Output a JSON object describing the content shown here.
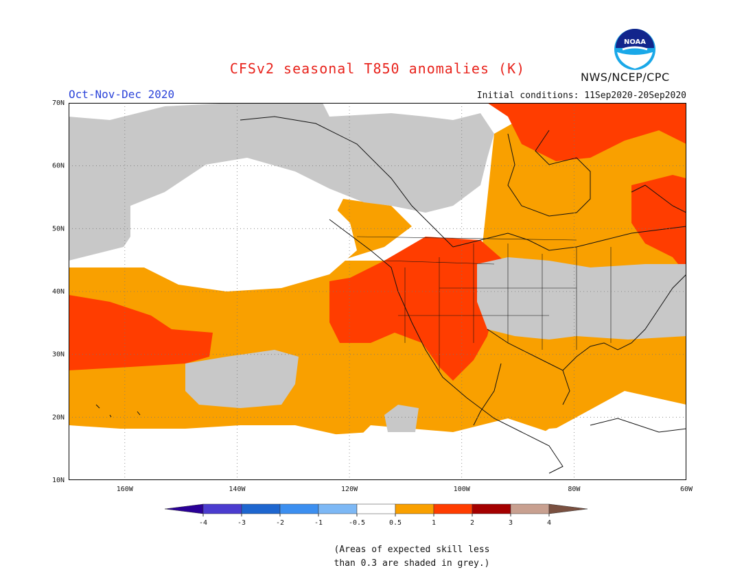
{
  "title": "CFSv2 seasonal T850 anomalies (K)",
  "period": "Oct-Nov-Dec 2020",
  "initial_conditions": "Initial conditions: 11Sep2020-20Sep2020",
  "agency": "NWS/NCEP/CPC",
  "logo_text": "NOAA",
  "map": {
    "lat_ticks": [
      "70N",
      "60N",
      "50N",
      "40N",
      "30N",
      "20N",
      "10N"
    ],
    "lon_ticks": [
      "160W",
      "140W",
      "120W",
      "100W",
      "80W",
      "60W"
    ],
    "lat_range": [
      10,
      70
    ],
    "lon_range": [
      -170,
      -60
    ],
    "colors": {
      "below": "#5fa2f0",
      "neutral": "#ffffff",
      "weak_warm": "#f9a000",
      "warm": "#ff3d00",
      "low_skill": "#c8c8c8"
    }
  },
  "legend": {
    "labels": [
      "-4",
      "-3",
      "-2",
      "-1",
      "-0.5",
      "0.5",
      "1",
      "2",
      "3",
      "4"
    ],
    "colors": [
      "#2a0097",
      "#4b3ccf",
      "#1e66cf",
      "#3c8ff0",
      "#7db8f5",
      "#ffffff",
      "#f9a000",
      "#ff3d00",
      "#a40000",
      "#c8a090",
      "#7a5040"
    ]
  },
  "note_lines": [
    "(Areas of expected skill less",
    "than 0.3 are shaded in grey.)"
  ]
}
